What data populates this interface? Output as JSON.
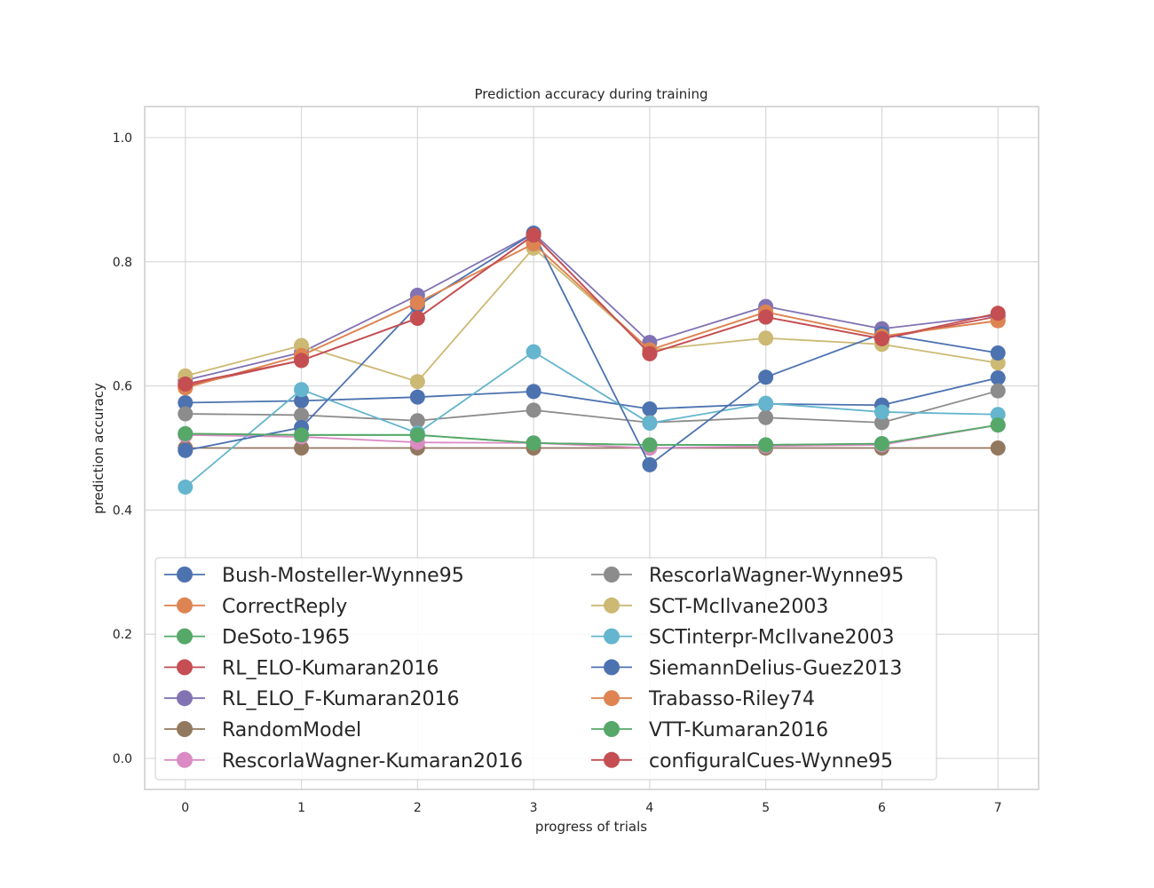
{
  "chart_data": {
    "type": "line",
    "title": "Prediction accuracy during training",
    "xlabel": "progress of trials",
    "ylabel": "prediction accuracy",
    "x": [
      0,
      1,
      2,
      3,
      4,
      5,
      6,
      7
    ],
    "xlim": [
      -0.35,
      7.35
    ],
    "ylim": [
      -0.05,
      1.05
    ],
    "xticks": [
      "0",
      "1",
      "2",
      "3",
      "4",
      "5",
      "6",
      "7"
    ],
    "yticks": [
      "0.0",
      "0.2",
      "0.4",
      "0.6",
      "0.8",
      "1.0"
    ],
    "grid": true,
    "legend_position": "lower-center",
    "series": [
      {
        "name": "Bush-Mosteller-Wynne95",
        "color": "#4c72b0",
        "values": [
          0.573,
          0.576,
          0.582,
          0.591,
          0.563,
          0.571,
          0.569,
          0.613
        ]
      },
      {
        "name": "CorrectReply",
        "color": "#dd8452",
        "values": [
          0.597,
          0.649,
          0.734,
          0.829,
          0.658,
          0.719,
          0.68,
          0.705
        ]
      },
      {
        "name": "DeSoto-1965",
        "color": "#55a868",
        "values": [
          0.523,
          0.521,
          0.521,
          0.508,
          0.505,
          0.505,
          0.507,
          0.537
        ]
      },
      {
        "name": "RL_ELO-Kumaran2016",
        "color": "#c44e52",
        "values": [
          0.6,
          0.641,
          0.709,
          0.843,
          0.652,
          0.711,
          0.676,
          0.712
        ]
      },
      {
        "name": "RL_ELO_F-Kumaran2016",
        "color": "#8172b3",
        "values": [
          0.609,
          0.654,
          0.746,
          0.846,
          0.67,
          0.728,
          0.692,
          0.714
        ]
      },
      {
        "name": "RandomModel",
        "color": "#937860",
        "values": [
          0.5,
          0.5,
          0.5,
          0.5,
          0.5,
          0.5,
          0.5,
          0.5
        ]
      },
      {
        "name": "RescorlaWagner-Kumaran2016",
        "color": "#da8bc3",
        "values": [
          0.521,
          0.518,
          0.509,
          0.508,
          0.5,
          0.503,
          0.505,
          0.537
        ]
      },
      {
        "name": "RescorlaWagner-Wynne95",
        "color": "#8c8c8c",
        "values": [
          0.555,
          0.553,
          0.544,
          0.561,
          0.541,
          0.549,
          0.541,
          0.592
        ]
      },
      {
        "name": "SCT-McIlvane2003",
        "color": "#ccb974",
        "values": [
          0.616,
          0.665,
          0.607,
          0.822,
          0.658,
          0.677,
          0.667,
          0.637
        ]
      },
      {
        "name": "SCTinterpr-McIlvane2003",
        "color": "#64b5cd",
        "values": [
          0.437,
          0.594,
          0.524,
          0.655,
          0.54,
          0.572,
          0.558,
          0.554
        ]
      },
      {
        "name": "SiemannDelius-Guez2013",
        "color": "#4c72b0",
        "values": [
          0.496,
          0.533,
          0.729,
          0.846,
          0.473,
          0.614,
          0.684,
          0.653
        ]
      },
      {
        "name": "Trabasso-Riley74",
        "color": "#dd8452",
        "values": [
          0.597,
          0.649,
          0.734,
          0.829,
          0.658,
          0.719,
          0.68,
          0.705
        ]
      },
      {
        "name": "VTT-Kumaran2016",
        "color": "#55a868",
        "values": [
          0.523,
          0.521,
          0.521,
          0.508,
          0.505,
          0.505,
          0.507,
          0.537
        ]
      },
      {
        "name": "configuralCues-Wynne95",
        "color": "#c44e52",
        "values": [
          0.603,
          0.641,
          0.709,
          0.843,
          0.652,
          0.711,
          0.676,
          0.717
        ]
      }
    ]
  }
}
